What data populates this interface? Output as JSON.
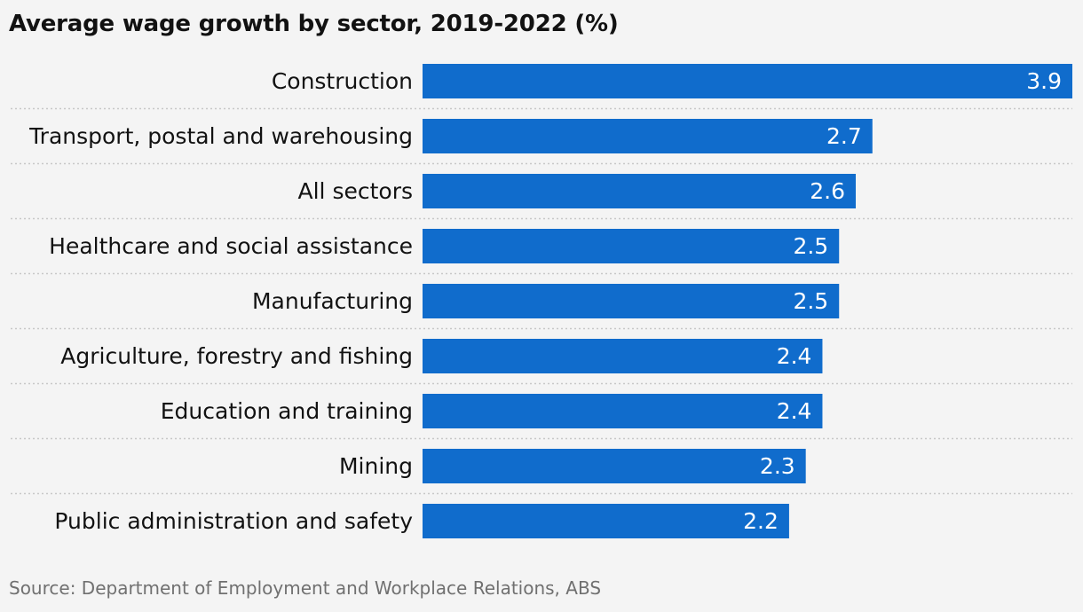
{
  "chart_data": {
    "type": "bar",
    "orientation": "horizontal",
    "title": "Average wage growth by sector, 2019-2022 (%)",
    "source": "Source: Department of Employment and Workplace Relations, ABS",
    "categories": [
      "Construction",
      "Transport, postal and warehousing",
      "All sectors",
      "Healthcare and social assistance",
      "Manufacturing",
      "Agriculture, forestry and fishing",
      "Education and training",
      "Mining",
      "Public administration and safety"
    ],
    "values": [
      3.9,
      2.7,
      2.6,
      2.5,
      2.5,
      2.4,
      2.4,
      2.3,
      2.2
    ],
    "value_labels": [
      "3.9",
      "2.7",
      "2.6",
      "2.5",
      "2.5",
      "2.4",
      "2.4",
      "2.3",
      "2.2"
    ],
    "xlim": [
      0,
      3.9
    ],
    "grid": false,
    "legend": "none",
    "colors": {
      "bar": "#106ccc",
      "divider": "#c8c8c8",
      "background": "#f4f4f4"
    }
  }
}
